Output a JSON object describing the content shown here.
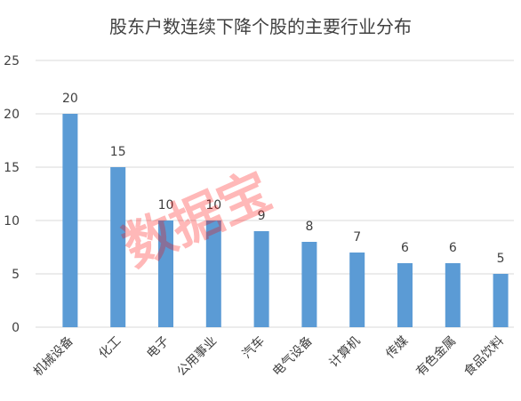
{
  "chart_data": {
    "type": "bar",
    "title": "股东户数连续下降个股的主要行业分布",
    "xlabel": "",
    "ylabel": "",
    "ylim": [
      0,
      25
    ],
    "yticks": [
      0,
      5,
      10,
      15,
      20,
      25
    ],
    "grid": true,
    "legend": "none",
    "categories": [
      "机械设备",
      "化工",
      "电子",
      "公用事业",
      "汽车",
      "电气设备",
      "计算机",
      "传媒",
      "有色金属",
      "食品饮料"
    ],
    "values": [
      20,
      15,
      10,
      10,
      9,
      8,
      7,
      6,
      6,
      5
    ],
    "bar_color": "#5b9bd5",
    "watermark": "数据宝",
    "watermark_color": "#ff0000"
  }
}
